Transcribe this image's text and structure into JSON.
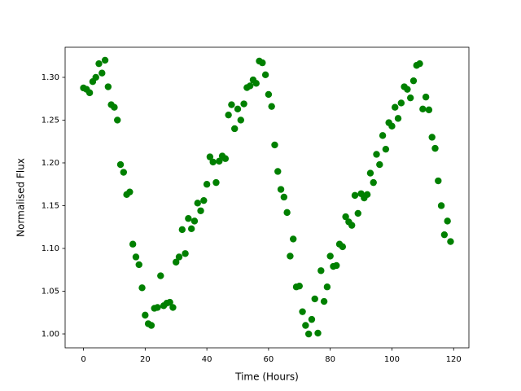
{
  "chart_data": {
    "type": "scatter",
    "x_label": "Time (Hours)",
    "y_label": "Normalised Flux",
    "color": "#008000",
    "x": [
      0,
      1,
      2,
      3,
      4,
      5,
      6,
      7,
      8,
      9,
      10,
      11,
      12,
      13,
      14,
      15,
      16,
      17,
      18,
      19,
      20,
      21,
      22,
      23,
      24,
      25,
      26,
      27,
      28,
      29,
      30,
      31,
      32,
      33,
      34,
      35,
      36,
      37,
      38,
      39,
      40,
      41,
      42,
      43,
      44,
      45,
      46,
      47,
      48,
      49,
      50,
      51,
      52,
      53,
      54,
      55,
      56,
      57,
      58,
      59,
      60,
      61,
      62,
      63,
      64,
      65,
      66,
      67,
      68,
      69,
      70,
      71,
      72,
      73,
      74,
      75,
      76,
      77,
      78,
      79,
      80,
      81,
      82,
      83,
      84,
      85,
      86,
      87,
      88,
      89,
      90,
      91,
      92,
      93,
      94,
      95,
      96,
      97,
      98,
      99,
      100,
      101,
      102,
      103,
      104,
      105,
      106,
      107,
      108,
      109,
      110,
      111,
      112,
      113,
      114,
      115,
      116,
      117,
      118,
      119
    ],
    "values": [
      1.2876,
      1.286,
      1.282,
      1.295,
      1.3,
      1.316,
      1.305,
      1.32,
      1.289,
      1.268,
      1.265,
      1.25,
      1.198,
      1.189,
      1.163,
      1.166,
      1.105,
      1.09,
      1.081,
      1.054,
      1.022,
      1.012,
      1.01,
      1.03,
      1.031,
      1.068,
      1.033,
      1.036,
      1.037,
      1.031,
      1.084,
      1.09,
      1.122,
      1.094,
      1.135,
      1.123,
      1.132,
      1.153,
      1.144,
      1.156,
      1.175,
      1.207,
      1.201,
      1.177,
      1.202,
      1.208,
      1.205,
      1.256,
      1.268,
      1.24,
      1.263,
      1.25,
      1.269,
      1.288,
      1.29,
      1.297,
      1.293,
      1.319,
      1.317,
      1.303,
      1.28,
      1.266,
      1.221,
      1.19,
      1.169,
      1.16,
      1.142,
      1.091,
      1.111,
      1.055,
      1.056,
      1.026,
      1.01,
      1.0,
      1.017,
      1.041,
      1.001,
      1.074,
      1.038,
      1.055,
      1.091,
      1.079,
      1.08,
      1.105,
      1.102,
      1.137,
      1.131,
      1.127,
      1.162,
      1.141,
      1.164,
      1.159,
      1.163,
      1.188,
      1.177,
      1.21,
      1.198,
      1.232,
      1.216,
      1.247,
      1.243,
      1.265,
      1.252,
      1.27,
      1.289,
      1.286,
      1.276,
      1.296,
      1.314,
      1.316,
      1.263,
      1.277,
      1.262,
      1.23,
      1.217,
      1.179,
      1.15,
      1.116,
      1.132,
      1.108
    ],
    "xlim": [
      -5.95,
      124.95
    ],
    "xticks": [
      0,
      20,
      40,
      60,
      80,
      100,
      120
    ],
    "ylim": [
      0.9838,
      1.3352
    ],
    "yticks": [
      {
        "value": 1.0,
        "label": "1.00"
      },
      {
        "value": 1.05,
        "label": "1.05"
      },
      {
        "value": 1.1,
        "label": "1.10"
      },
      {
        "value": 1.15,
        "label": "1.15"
      },
      {
        "value": 1.2,
        "label": "1.20"
      },
      {
        "value": 1.25,
        "label": "1.25"
      },
      {
        "value": 1.3,
        "label": "1.30"
      }
    ]
  }
}
